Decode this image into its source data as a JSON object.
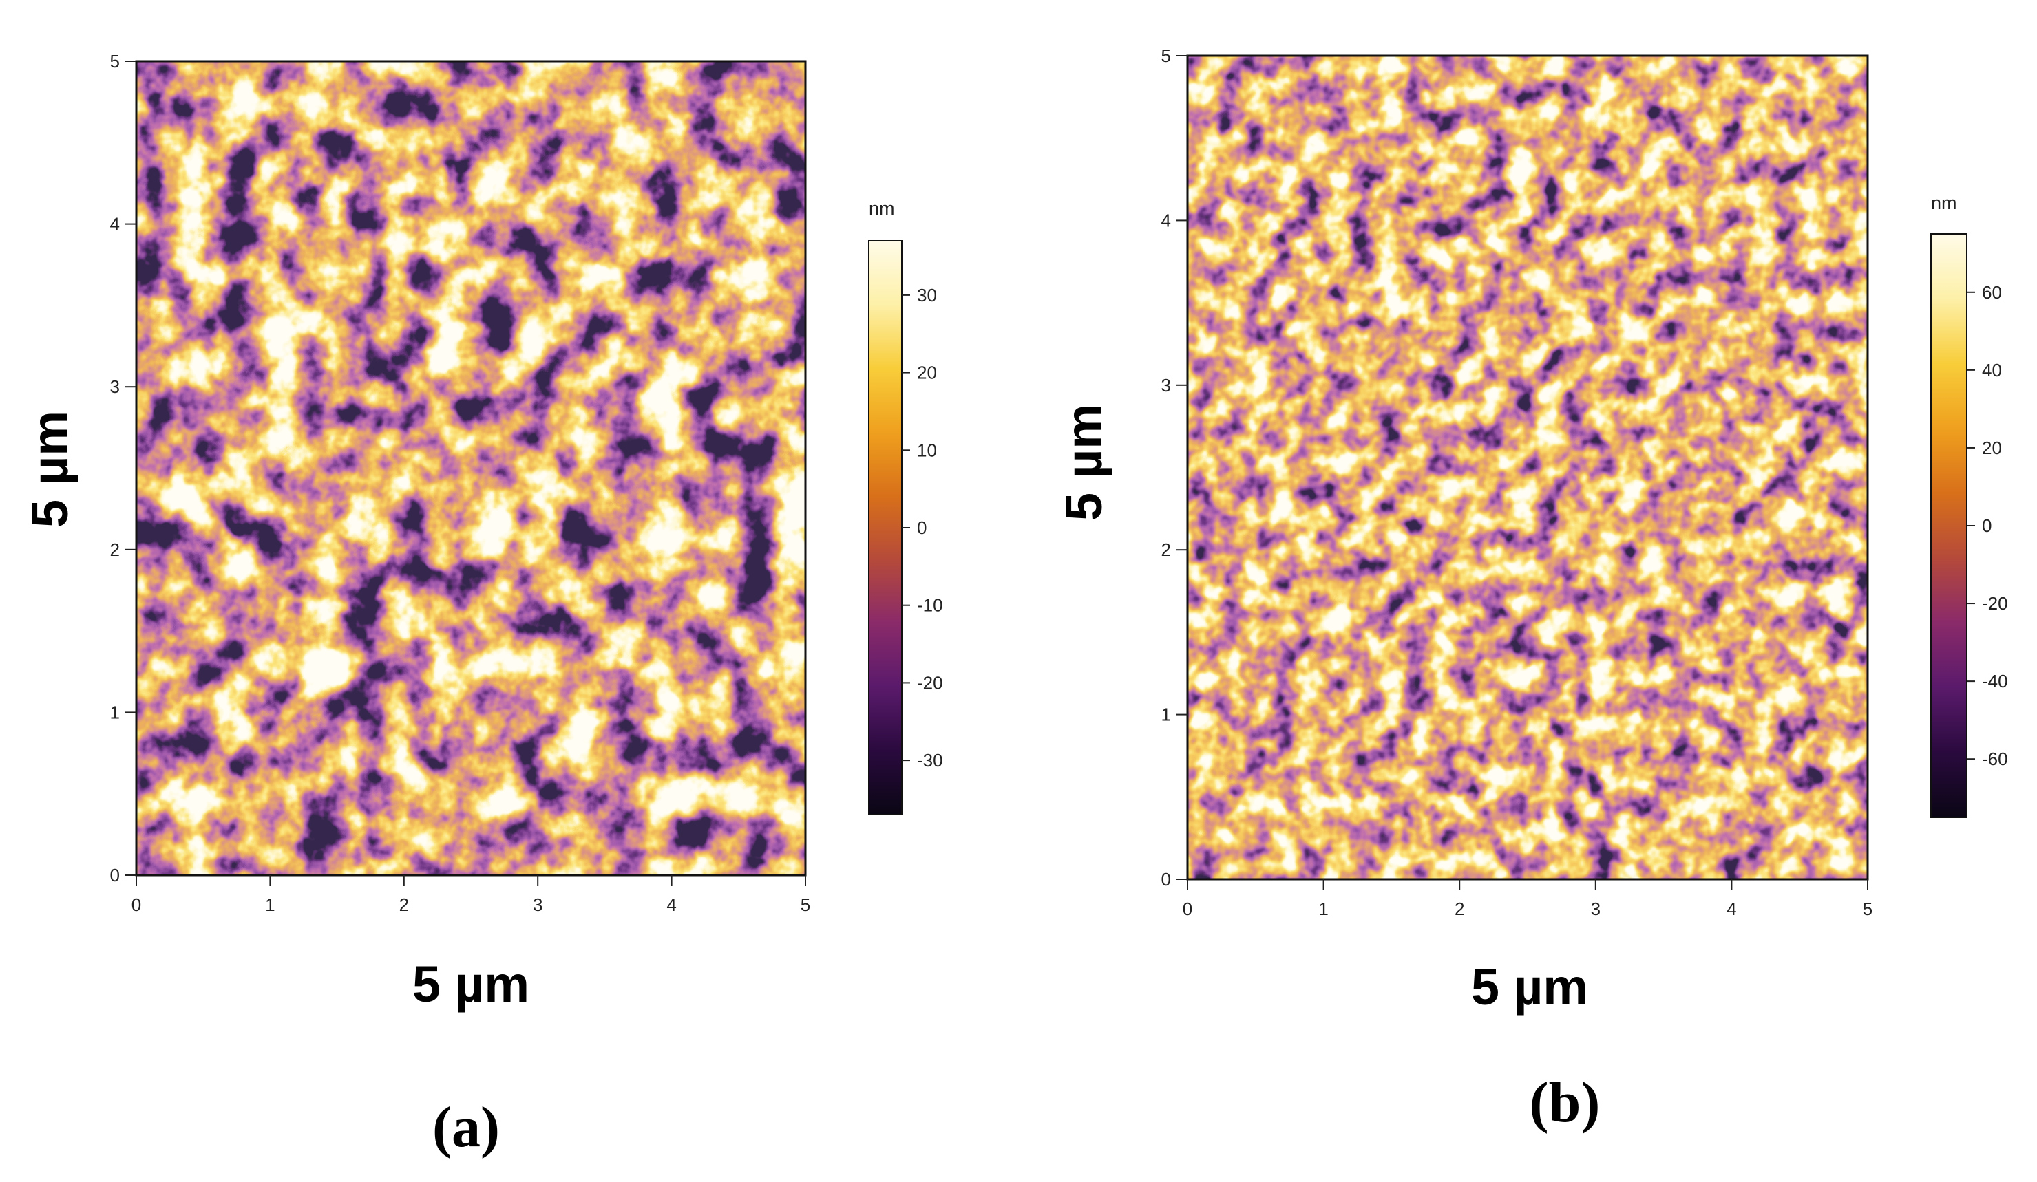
{
  "chart_data": [
    {
      "type": "heatmap",
      "panel_label": "(a)",
      "xlabel": "5 µm",
      "ylabel": "5 µm",
      "x_ticks": [
        "0",
        "1",
        "2",
        "3",
        "4",
        "5"
      ],
      "y_ticks": [
        "0",
        "1",
        "2",
        "3",
        "4",
        "5"
      ],
      "xlim": [
        0,
        5
      ],
      "ylim": [
        0,
        5
      ],
      "colorbar": {
        "unit": "nm",
        "ticks": [
          "-30",
          "-20",
          "-10",
          "0",
          "10",
          "20",
          "30"
        ],
        "range": [
          -37,
          37
        ]
      }
    },
    {
      "type": "heatmap",
      "panel_label": "(b)",
      "xlabel": "5 µm",
      "ylabel": "5 µm",
      "x_ticks": [
        "0",
        "1",
        "2",
        "3",
        "4",
        "5"
      ],
      "y_ticks": [
        "0",
        "1",
        "2",
        "3",
        "4",
        "5"
      ],
      "xlim": [
        0,
        5
      ],
      "ylim": [
        0,
        5
      ],
      "colorbar": {
        "unit": "nm",
        "ticks": [
          "-60",
          "-40",
          "-20",
          "0",
          "20",
          "40",
          "60"
        ],
        "range": [
          -75,
          75
        ]
      }
    }
  ],
  "colors": {
    "map_stops": [
      "#0a0614",
      "#2a0a3e",
      "#5a1a6b",
      "#8a2a6a",
      "#b54a3a",
      "#d8701a",
      "#efa01e",
      "#f8cd3a",
      "#fdf0a8",
      "#fffbe8"
    ],
    "background": "#ffffff",
    "axis": "#222222"
  }
}
